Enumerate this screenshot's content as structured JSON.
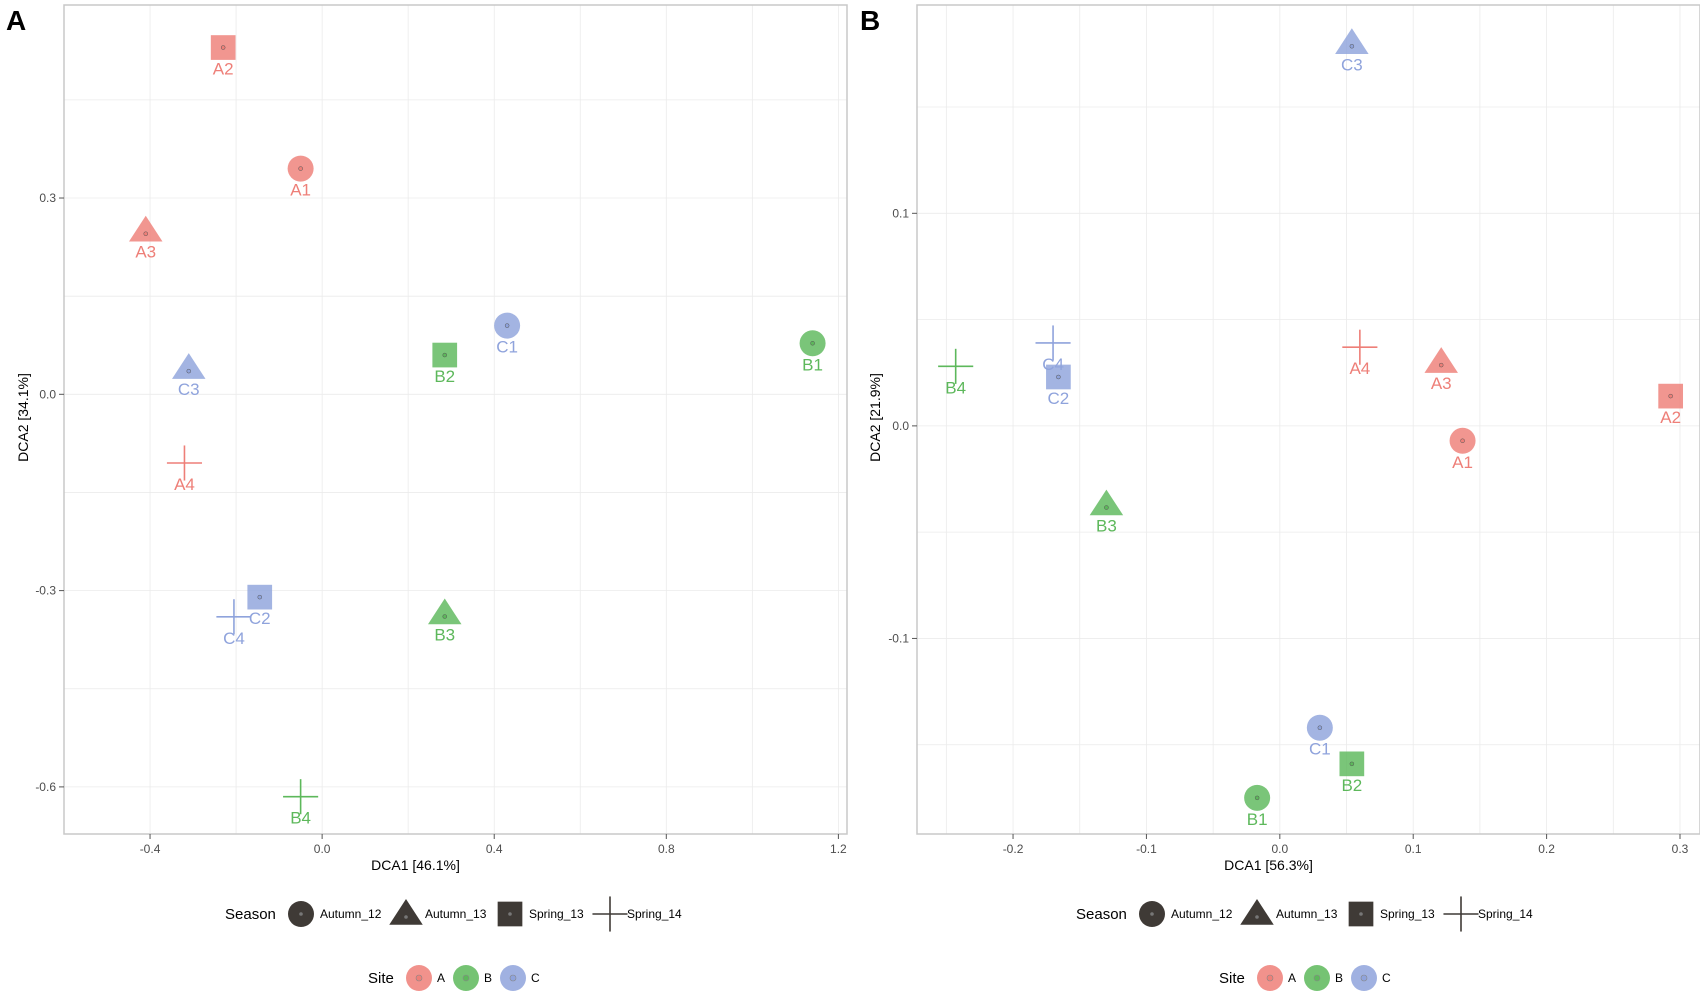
{
  "colors": {
    "A": "#EE7F78",
    "B": "#5DB85B",
    "C": "#8FA3DC",
    "legend_shape": "#3f3a36",
    "grid": "#ebebeb",
    "frame": "#c8c8c8"
  },
  "legend": {
    "season_title": "Season",
    "site_title": "Site",
    "seasons": [
      {
        "key": "Autumn_12",
        "label": "Autumn_12",
        "shape": "circle"
      },
      {
        "key": "Autumn_13",
        "label": "Autumn_13",
        "shape": "triangle"
      },
      {
        "key": "Spring_13",
        "label": "Spring_13",
        "shape": "square"
      },
      {
        "key": "Spring_14",
        "label": "Spring_14",
        "shape": "plus"
      }
    ],
    "sites": [
      {
        "key": "A",
        "label": "A"
      },
      {
        "key": "B",
        "label": "B"
      },
      {
        "key": "C",
        "label": "C"
      }
    ]
  },
  "chart_data": [
    {
      "panel": "A",
      "type": "scatter",
      "xlabel": "DCA1   [46.1%]",
      "ylabel": "DCA2   [34.1%]",
      "xlim": [
        -0.6,
        1.22
      ],
      "ylim": [
        -0.672,
        0.595
      ],
      "xticks": [
        -0.4,
        0.0,
        0.4,
        0.8,
        1.2
      ],
      "xtick_labels": [
        "-0.4",
        "0.0",
        "0.4",
        "0.8",
        "1.2"
      ],
      "yticks": [
        -0.6,
        -0.3,
        0.0,
        0.3
      ],
      "ytick_labels": [
        "-0.6",
        "-0.3",
        "0.0",
        "0.3"
      ],
      "points": [
        {
          "label": "A1",
          "site": "A",
          "season": "Autumn_12",
          "x": -0.05,
          "y": 0.345
        },
        {
          "label": "A2",
          "site": "A",
          "season": "Spring_13",
          "x": -0.23,
          "y": 0.53
        },
        {
          "label": "A3",
          "site": "A",
          "season": "Autumn_13",
          "x": -0.41,
          "y": 0.25
        },
        {
          "label": "A4",
          "site": "A",
          "season": "Spring_14",
          "x": -0.32,
          "y": -0.105
        },
        {
          "label": "B1",
          "site": "B",
          "season": "Autumn_12",
          "x": 1.14,
          "y": 0.078
        },
        {
          "label": "B2",
          "site": "B",
          "season": "Spring_13",
          "x": 0.285,
          "y": 0.06
        },
        {
          "label": "B3",
          "site": "B",
          "season": "Autumn_13",
          "x": 0.285,
          "y": -0.335
        },
        {
          "label": "B4",
          "site": "B",
          "season": "Spring_14",
          "x": -0.05,
          "y": -0.615
        },
        {
          "label": "C1",
          "site": "C",
          "season": "Autumn_12",
          "x": 0.43,
          "y": 0.105
        },
        {
          "label": "C2",
          "site": "C",
          "season": "Spring_13",
          "x": -0.145,
          "y": -0.31
        },
        {
          "label": "C3",
          "site": "C",
          "season": "Autumn_13",
          "x": -0.31,
          "y": 0.04
        },
        {
          "label": "C4",
          "site": "C",
          "season": "Spring_14",
          "x": -0.205,
          "y": -0.34
        }
      ]
    },
    {
      "panel": "B",
      "type": "scatter",
      "xlabel": "DCA1   [56.3%]",
      "ylabel": "DCA2   [21.9%]",
      "xlim": [
        -0.272,
        0.315
      ],
      "ylim": [
        -0.192,
        0.198
      ],
      "xticks": [
        -0.2,
        -0.1,
        0.0,
        0.1,
        0.2,
        0.3
      ],
      "xtick_labels": [
        "-0.2",
        "-0.1",
        "0.0",
        "0.1",
        "0.2",
        "0.3"
      ],
      "yticks": [
        -0.1,
        0.0,
        0.1
      ],
      "ytick_labels": [
        "-0.1",
        "0.0",
        "0.1"
      ],
      "points": [
        {
          "label": "A1",
          "site": "A",
          "season": "Autumn_12",
          "x": 0.137,
          "y": -0.007
        },
        {
          "label": "A2",
          "site": "A",
          "season": "Spring_13",
          "x": 0.293,
          "y": 0.014
        },
        {
          "label": "A3",
          "site": "A",
          "season": "Autumn_13",
          "x": 0.121,
          "y": 0.03
        },
        {
          "label": "A4",
          "site": "A",
          "season": "Spring_14",
          "x": 0.06,
          "y": 0.037
        },
        {
          "label": "B1",
          "site": "B",
          "season": "Autumn_12",
          "x": -0.017,
          "y": -0.175
        },
        {
          "label": "B2",
          "site": "B",
          "season": "Spring_13",
          "x": 0.054,
          "y": -0.159
        },
        {
          "label": "B3",
          "site": "B",
          "season": "Autumn_13",
          "x": -0.13,
          "y": -0.037
        },
        {
          "label": "B4",
          "site": "B",
          "season": "Spring_14",
          "x": -0.243,
          "y": 0.028
        },
        {
          "label": "C1",
          "site": "C",
          "season": "Autumn_12",
          "x": 0.03,
          "y": -0.142
        },
        {
          "label": "C2",
          "site": "C",
          "season": "Spring_13",
          "x": -0.166,
          "y": 0.023
        },
        {
          "label": "C3",
          "site": "C",
          "season": "Autumn_13",
          "x": 0.054,
          "y": 0.18
        },
        {
          "label": "C4",
          "site": "C",
          "season": "Spring_14",
          "x": -0.17,
          "y": 0.039
        }
      ]
    }
  ]
}
